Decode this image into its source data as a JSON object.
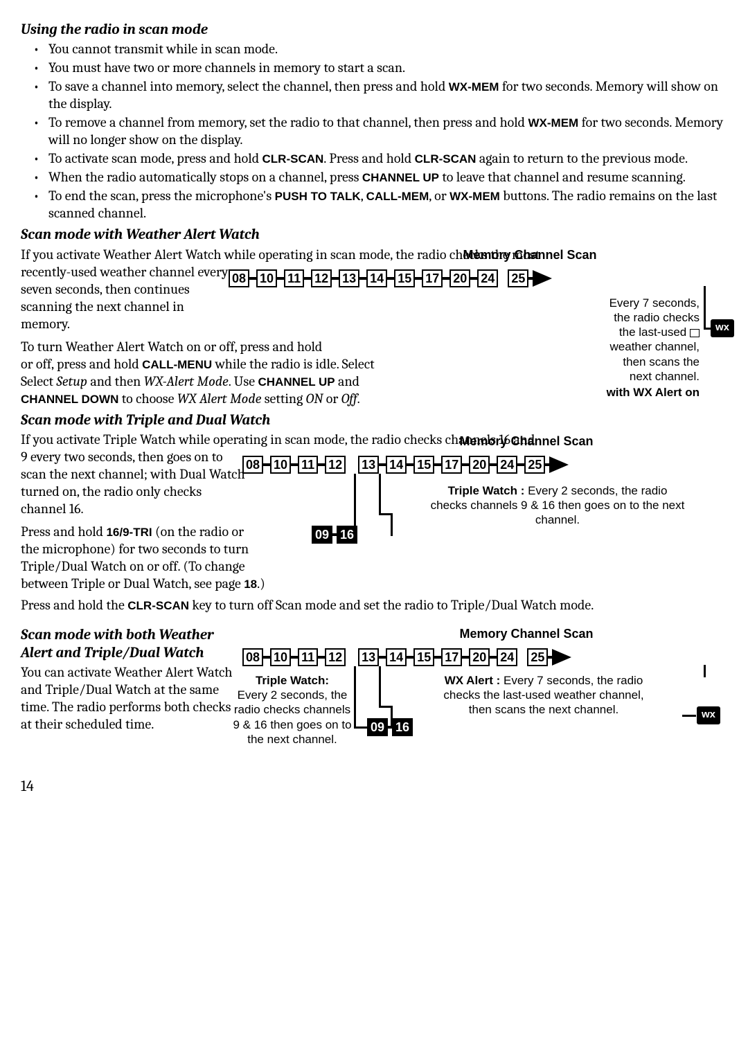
{
  "page_number": "14",
  "section1": {
    "heading": "Using the radio in scan mode",
    "bullets": [
      {
        "pre": "You cannot transmit while in scan mode."
      },
      {
        "pre": "You must have two or more channels in memory to start a scan."
      },
      {
        "pre": "To save a channel into memory, select the channel, then press and hold ",
        "b1": "WX-MEM",
        "mid1": " for two seconds. Memory will show on the display."
      },
      {
        "pre": "To remove a channel from memory, set the radio to that channel, then press and hold ",
        "b1": "WX-MEM",
        "mid1": " for two seconds. Memory will no longer show on the display."
      },
      {
        "pre": "To activate scan mode, press and hold ",
        "b1": "CLR-SCAN",
        "mid1": ". Press and hold ",
        "b2": "CLR-SCAN",
        "mid2": " again to return to the previous mode."
      },
      {
        "pre": "When the radio automatically stops on a channel, press ",
        "b1": "CHANNEL UP",
        "mid1": " to leave that channel and resume scanning."
      },
      {
        "pre": "To end the scan, press the microphone's ",
        "b1": "PUSH TO TALK",
        "mid1": ", ",
        "b2": "CALL-MEM",
        "mid2": ", or ",
        "b3": "WX-MEM",
        "mid3": " buttons. The radio remains on the last scanned channel."
      }
    ]
  },
  "section2": {
    "heading": "Scan mode with Weather Alert Watch",
    "p1_a": "If you activate Weather Alert Watch while operating in scan mode, the radio checks the most recently-used weather channel every seven seconds, then continues scanning the next channel in memory.",
    "p2_a": "To turn Weather Alert Watch on or off, press and hold ",
    "p2_b1": "CALL-MENU",
    "p2_b": " while the radio is idle. Select ",
    "p2_i1": "Setup",
    "p2_c": " and then ",
    "p2_i2": "WX-Alert Mode",
    "p2_d": ". Use ",
    "p2_b2": "CHANNEL UP",
    "p2_e": " and ",
    "p2_b3": "CHANNEL DOWN",
    "p2_f": " to choose ",
    "p2_i3": "WX Alert  Mode",
    "p2_g": " setting ",
    "p2_i4": "ON",
    "p2_h": " or ",
    "p2_i5": "Off",
    "p2_i": ".",
    "diagram": {
      "title": "Memory Channel Scan",
      "chips": [
        "08",
        "10",
        "11",
        "12",
        "13",
        "14",
        "15",
        "17",
        "20",
        "24",
        "25"
      ],
      "caption_lines": [
        "Every 7 seconds,",
        "the radio checks",
        "the last-used",
        "weather channel,",
        "then scans the",
        "next channel."
      ],
      "footer": "with WX Alert on",
      "wx": "wx"
    }
  },
  "section3": {
    "heading": "Scan mode with Triple and Dual Watch",
    "p1": "If you activate Triple Watch while operating in scan mode, the radio checks channels 16 and 9 every two seconds, then goes on to scan the next channel; with Dual Watch turned on, the radio only checks channel 16.",
    "p2_a": "Press and hold ",
    "p2_b1": "16/9-TRI",
    "p2_b": " (on the radio or the microphone) for two seconds to turn Triple/Dual Watch on or off. (To change between Triple or Dual Watch, see page ",
    "p2_b2": "18",
    "p2_c": ".)",
    "p3_a": "Press and hold the ",
    "p3_b1": "CLR-SCAN",
    "p3_b": " key to turn off Scan mode and set the radio to Triple/Dual Watch mode.",
    "diagram": {
      "title": "Memory Channel Scan",
      "chips_left": [
        "08",
        "10",
        "11",
        "12"
      ],
      "chips_right": [
        "13",
        "14",
        "15",
        "17",
        "20",
        "24",
        "25"
      ],
      "sub": [
        "09",
        "16"
      ],
      "cap_b": "Triple Watch :",
      "cap": " Every 2 seconds, the radio checks channels 9 & 16 then goes on to the next channel."
    }
  },
  "section4": {
    "heading": "Scan mode with both Weather Alert and Triple/Dual Watch",
    "p1": "You can activate Weather Alert Watch and Triple/Dual Watch at the same time. The radio performs both checks at their scheduled time.",
    "diagram": {
      "title": "Memory Channel Scan",
      "chips_left": [
        "08",
        "10",
        "11",
        "12"
      ],
      "chips_right": [
        "13",
        "14",
        "15",
        "17",
        "20",
        "24",
        "25"
      ],
      "sub": [
        "09",
        "16"
      ],
      "left_b": "Triple Watch:",
      "left": "Every 2 seconds, the radio checks channels 9 & 16 then goes on to the next channel.",
      "right_b": "WX Alert :",
      "right": " Every 7 seconds, the radio checks the last-used weather channel, then scans the  next channel.",
      "wx": "wx"
    }
  }
}
